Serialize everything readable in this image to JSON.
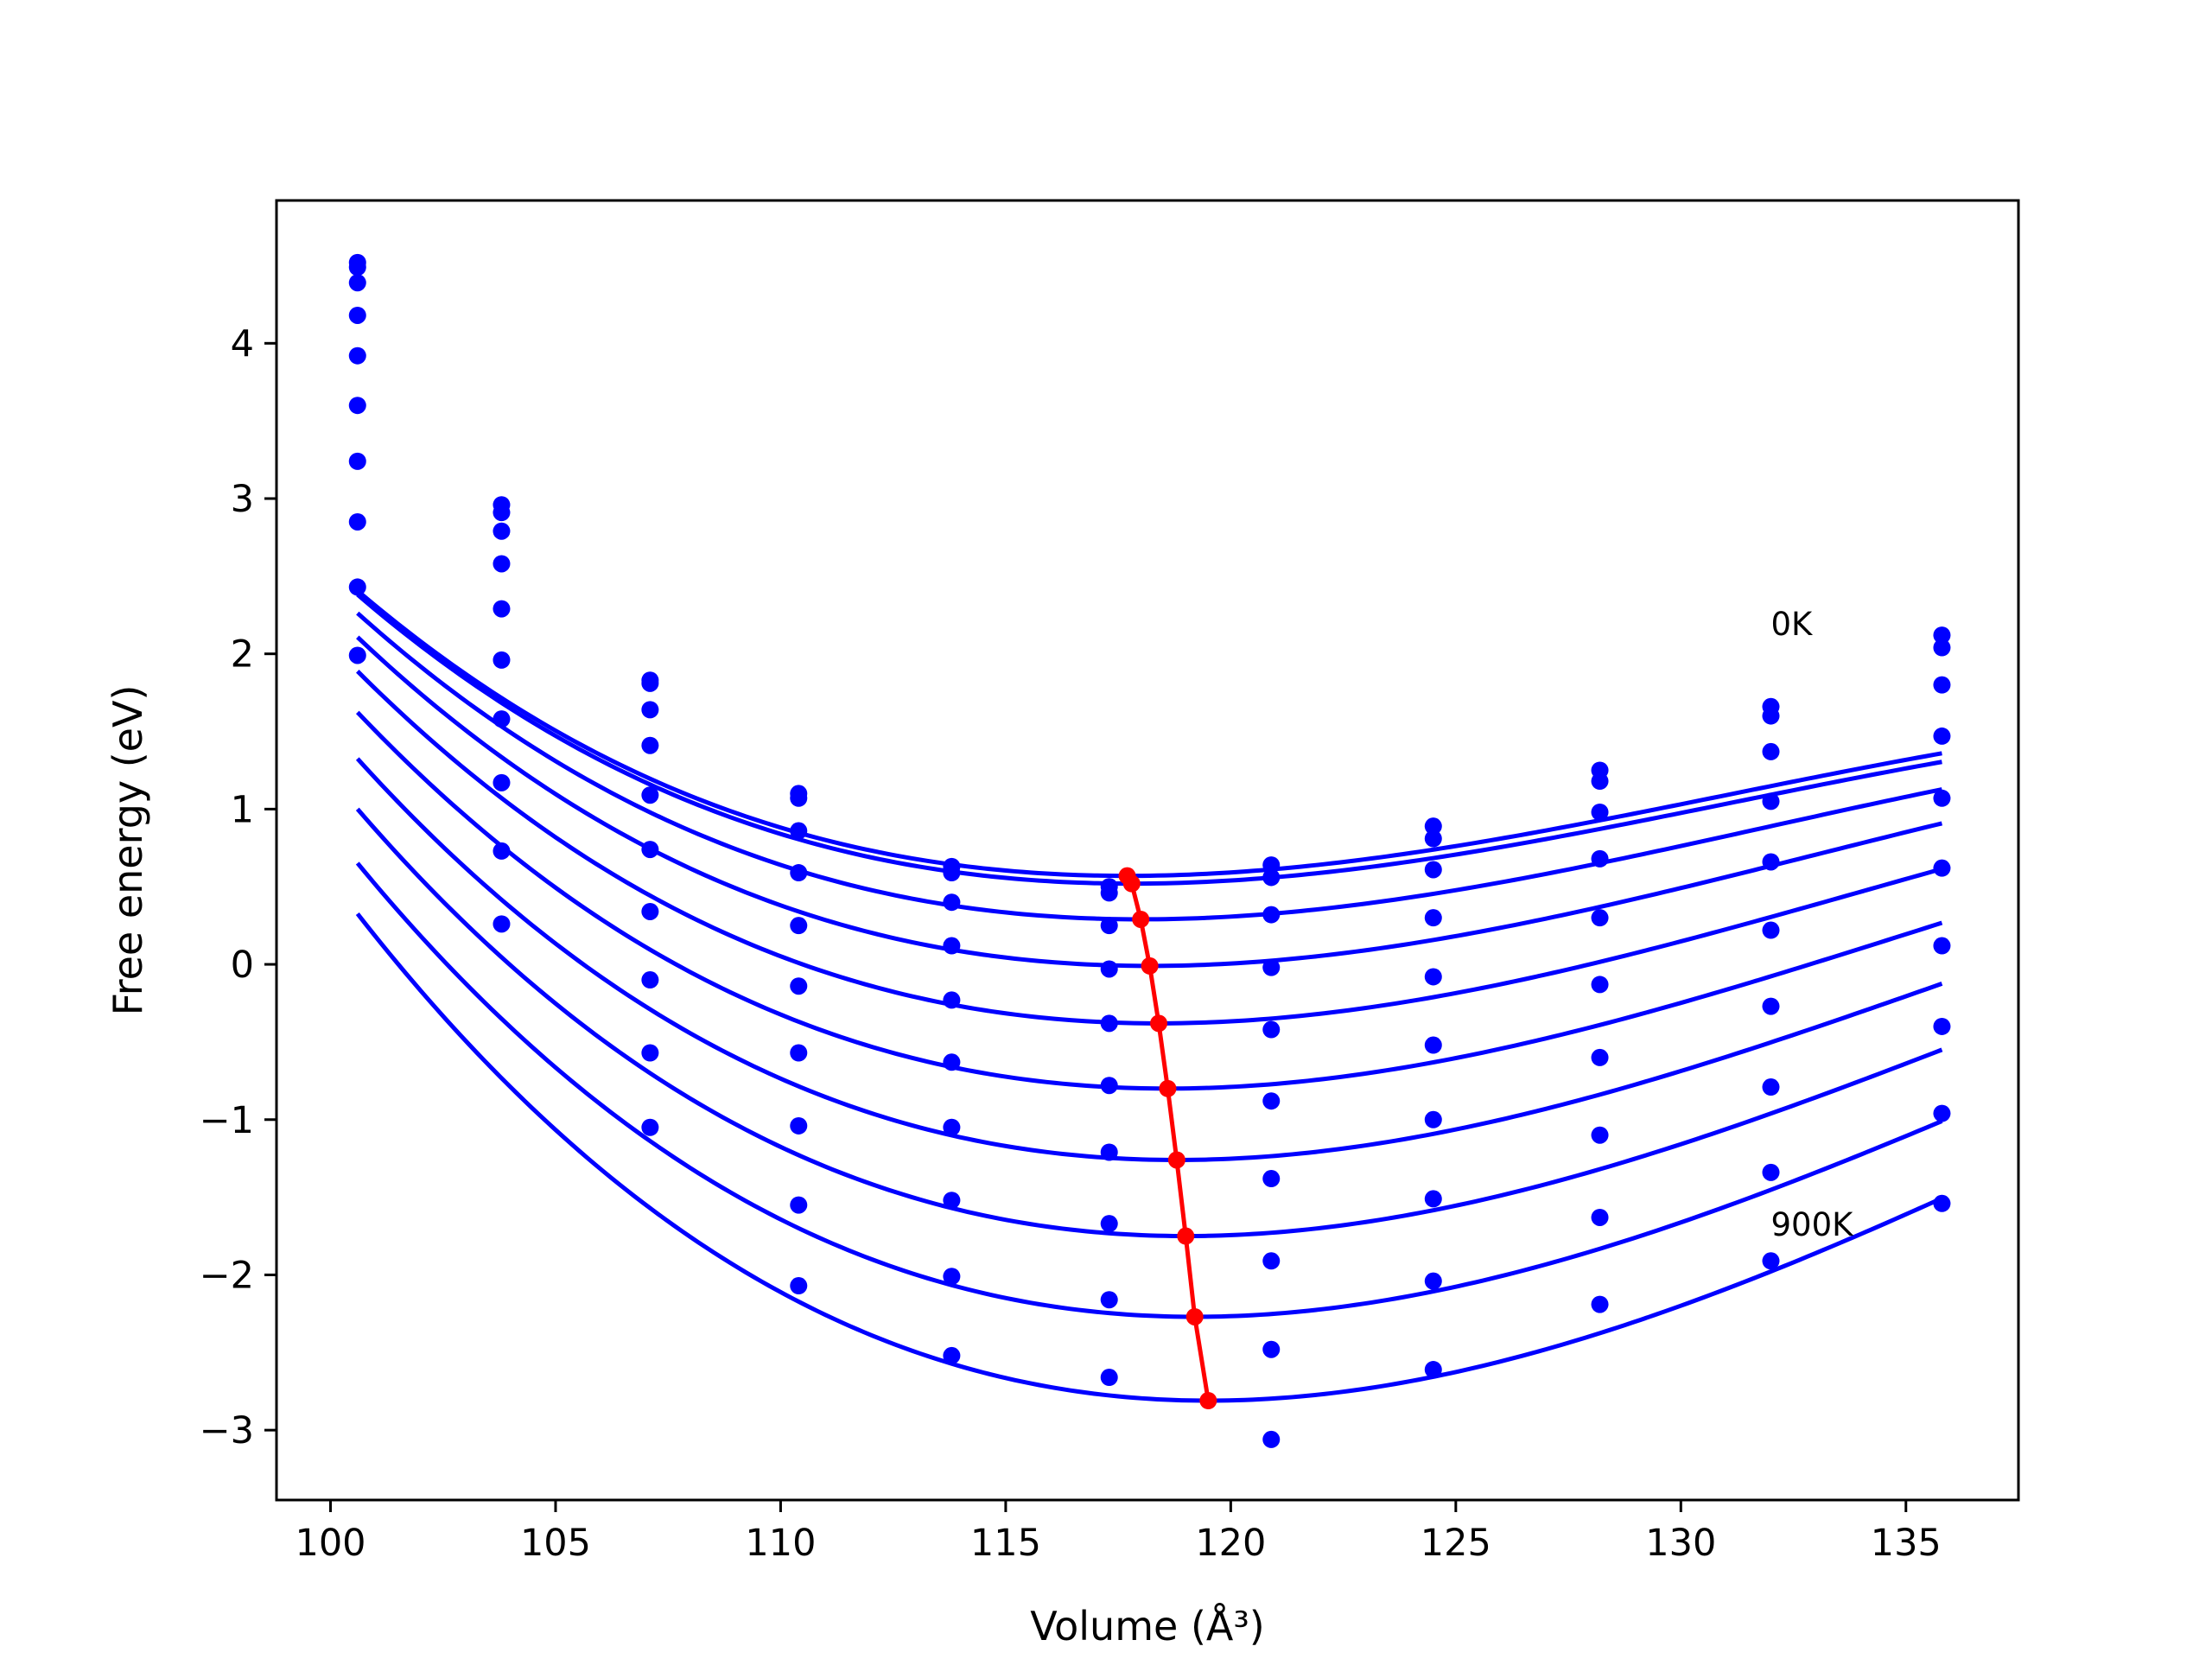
{
  "chart_data": {
    "type": "line",
    "title": "",
    "xlabel": "Volume (Å³)",
    "ylabel": "Free energy (eV)",
    "xlim": [
      98.8,
      137.5
    ],
    "ylim": [
      -3.45,
      4.92
    ],
    "x_ticks": [
      "100",
      "105",
      "110",
      "115",
      "120",
      "125",
      "130",
      "135"
    ],
    "x_tick_values": [
      100,
      105,
      110,
      115,
      120,
      125,
      130,
      135
    ],
    "y_ticks": [
      "4",
      "3",
      "2",
      "1",
      "0",
      "−1",
      "−2",
      "−3"
    ],
    "y_tick_values": [
      4,
      3,
      2,
      1,
      0,
      -1,
      -2,
      -3
    ],
    "grid": false,
    "legend": "none",
    "colors": {
      "curves": "#0000ff",
      "minima": "#ff0000"
    },
    "annotations": [
      {
        "text": "0K",
        "x": 132.0,
        "y": 2.2
      },
      {
        "text": "900K",
        "x": 132.0,
        "y": -1.67
      }
    ],
    "volumes": [
      100.6,
      103.8,
      107.1,
      110.4,
      113.8,
      117.3,
      120.9,
      124.5,
      128.2,
      132.0,
      135.8
    ],
    "series": [
      {
        "points": [
          4.52,
          2.96,
          1.83,
          1.1,
          0.63,
          0.5,
          0.64,
          0.89,
          1.25,
          1.66,
          2.12
        ],
        "fit": {
          "v0": 117.7,
          "e0": 0.57,
          "a": 0.0044,
          "b": 0.00011
        }
      },
      {
        "points": [
          4.49,
          2.91,
          1.81,
          1.07,
          0.59,
          0.46,
          0.56,
          0.81,
          1.18,
          1.6,
          2.04
        ],
        "fit": {
          "v0": 117.8,
          "e0": 0.52,
          "a": 0.0044,
          "b": 0.00011
        }
      },
      {
        "points": [
          4.39,
          2.79,
          1.64,
          0.86,
          0.4,
          0.25,
          0.32,
          0.61,
          0.98,
          1.37,
          1.8
        ],
        "fit": {
          "v0": 118.0,
          "e0": 0.29,
          "a": 0.0046,
          "b": 0.00011
        }
      },
      {
        "points": [
          4.18,
          2.58,
          1.41,
          0.59,
          0.12,
          -0.03,
          -0.02,
          0.3,
          0.68,
          1.05,
          1.47
        ],
        "fit": {
          "v0": 118.2,
          "e0": -0.01,
          "a": 0.0049,
          "b": 0.00011
        }
      },
      {
        "points": [
          3.92,
          2.29,
          1.09,
          0.25,
          -0.23,
          -0.38,
          -0.42,
          -0.08,
          0.3,
          0.66,
          1.07
        ],
        "fit": {
          "v0": 118.4,
          "e0": -0.38,
          "a": 0.0052,
          "b": 0.00011
        }
      },
      {
        "points": [
          3.6,
          1.96,
          0.74,
          -0.14,
          -0.63,
          -0.78,
          -0.88,
          -0.52,
          -0.13,
          0.22,
          0.62
        ],
        "fit": {
          "v0": 118.6,
          "e0": -0.8,
          "a": 0.0055,
          "b": 0.00011
        }
      },
      {
        "points": [
          3.24,
          1.58,
          0.34,
          -0.57,
          -1.05,
          -1.21,
          -1.38,
          -1.0,
          -0.6,
          -0.27,
          0.12
        ],
        "fit": {
          "v0": 118.8,
          "e0": -1.26,
          "a": 0.0058,
          "b": 0.00011
        }
      },
      {
        "points": [
          2.85,
          1.17,
          -0.1,
          -1.04,
          -1.52,
          -1.67,
          -1.91,
          -1.51,
          -1.1,
          -0.79,
          -0.4
        ],
        "fit": {
          "v0": 119.0,
          "e0": -1.75,
          "a": 0.0061,
          "b": 0.00011
        }
      },
      {
        "points": [
          2.43,
          0.73,
          -0.57,
          -1.55,
          -2.01,
          -2.16,
          -2.48,
          -2.04,
          -1.63,
          -1.34,
          -0.96
        ],
        "fit": {
          "v0": 119.2,
          "e0": -2.27,
          "a": 0.0064,
          "b": 0.00011
        }
      },
      {
        "points": [
          1.99,
          0.26,
          -1.05,
          -2.07,
          -2.52,
          -2.66,
          -3.06,
          -2.61,
          -2.19,
          -1.91,
          -1.54
        ],
        "fit": {
          "v0": 119.5,
          "e0": -2.81,
          "a": 0.0067,
          "b": 0.00011
        }
      }
    ],
    "minima": {
      "x": [
        117.7,
        117.8,
        118.0,
        118.2,
        118.4,
        118.6,
        118.8,
        119.0,
        119.2,
        119.5
      ],
      "y": [
        0.57,
        0.52,
        0.29,
        -0.01,
        -0.38,
        -0.8,
        -1.26,
        -1.75,
        -2.27,
        -2.81
      ]
    }
  }
}
